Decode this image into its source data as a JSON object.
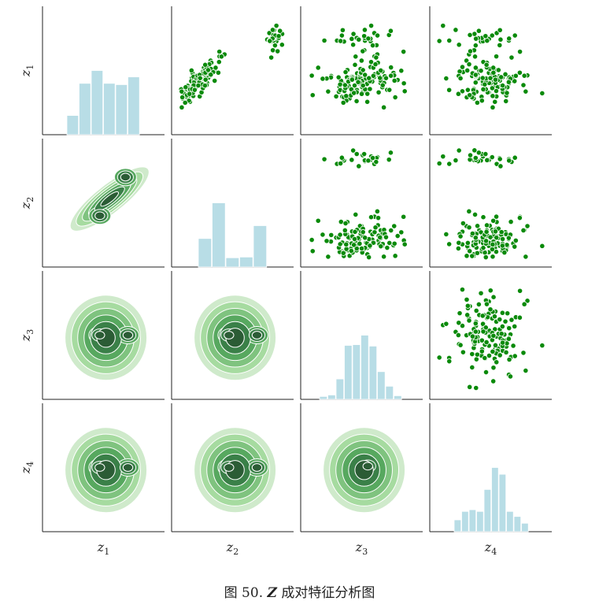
{
  "caption": {
    "prefix": "图 50. ",
    "symbol": "Z",
    "suffix": " 成对特征分析图"
  },
  "colors": {
    "hist": "#b8dde6",
    "scatter": "#0a8a0a",
    "kde": [
      "#cfeacb",
      "#a6dba0",
      "#7fc37f",
      "#57a85f",
      "#3a8048",
      "#2b5c35"
    ]
  },
  "chart_data": {
    "type": "pair-plot",
    "variables": [
      "z",
      "z",
      "z",
      "z"
    ],
    "variable_subscripts": [
      "1",
      "2",
      "3",
      "4"
    ],
    "histograms": {
      "z1": {
        "counts": [
          3,
          8,
          10,
          8,
          7.8,
          9
        ]
      },
      "z2": {
        "counts": [
          4,
          9,
          1.3,
          1.4,
          5.8
        ]
      },
      "z3": {
        "counts": [
          0.4,
          0.6,
          2.8,
          7.4,
          7.5,
          8.8,
          7.3,
          3.8,
          1.8,
          0.5
        ]
      },
      "z4": {
        "counts": [
          1.4,
          2.4,
          2.6,
          2.4,
          5.0,
          7.6,
          6.8,
          2.4,
          1.8,
          1.0
        ]
      }
    },
    "scatter_points": 150,
    "diagonal": "histogram",
    "upper": "scatter",
    "lower": "kde"
  }
}
